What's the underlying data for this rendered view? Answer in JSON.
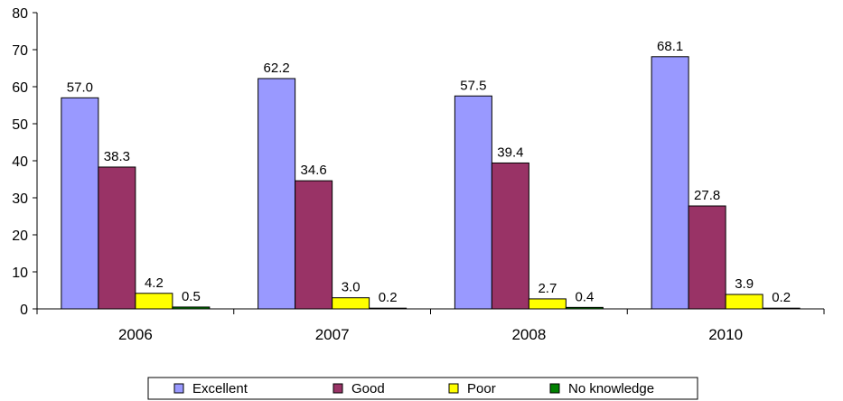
{
  "chart_data": {
    "type": "bar",
    "categories": [
      "2006",
      "2007",
      "2008",
      "2010"
    ],
    "series": [
      {
        "name": "Excellent",
        "color": "#9999ff",
        "values": [
          57.0,
          62.2,
          57.5,
          68.1
        ]
      },
      {
        "name": "Good",
        "color": "#993366",
        "values": [
          38.3,
          34.6,
          39.4,
          27.8
        ]
      },
      {
        "name": "Poor",
        "color": "#ffff00",
        "values": [
          4.2,
          3.0,
          2.7,
          3.9
        ]
      },
      {
        "name": "No knowledge",
        "color": "#008000",
        "values": [
          0.5,
          0.2,
          0.4,
          0.2
        ]
      }
    ],
    "y_ticks": [
      "0",
      "10",
      "20",
      "30",
      "40",
      "50",
      "60",
      "70",
      "80"
    ],
    "ylim": [
      0,
      80
    ],
    "legend_position": "bottom",
    "grid": false,
    "data_labels": true
  }
}
